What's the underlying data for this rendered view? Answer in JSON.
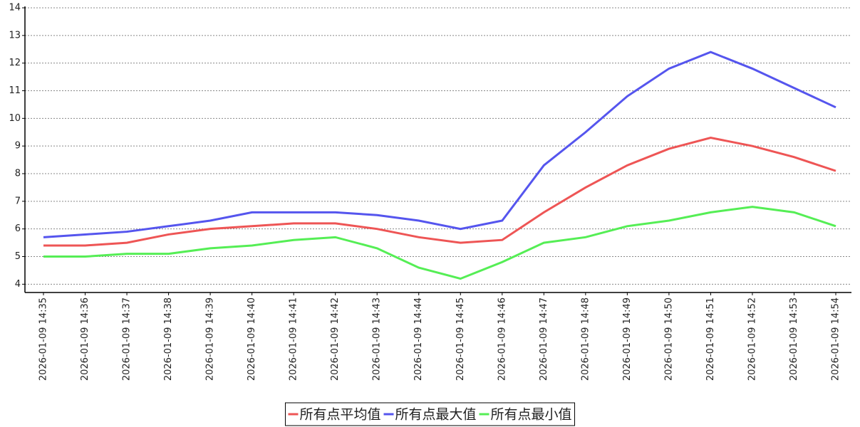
{
  "chart_data": {
    "type": "line",
    "categories": [
      "2026-01-09 14:35",
      "2026-01-09 14:36",
      "2026-01-09 14:37",
      "2026-01-09 14:38",
      "2026-01-09 14:39",
      "2026-01-09 14:40",
      "2026-01-09 14:41",
      "2026-01-09 14:42",
      "2026-01-09 14:43",
      "2026-01-09 14:44",
      "2026-01-09 14:45",
      "2026-01-09 14:46",
      "2026-01-09 14:47",
      "2026-01-09 14:48",
      "2026-01-09 14:49",
      "2026-01-09 14:50",
      "2026-01-09 14:51",
      "2026-01-09 14:52",
      "2026-01-09 14:53",
      "2026-01-09 14:54"
    ],
    "series": [
      {
        "name": "所有点平均值",
        "color": "#ee5555",
        "values": [
          5.4,
          5.4,
          5.5,
          5.8,
          6.0,
          6.1,
          6.2,
          6.2,
          6.0,
          5.7,
          5.5,
          5.6,
          6.6,
          7.5,
          8.3,
          8.9,
          9.3,
          9.0,
          8.6,
          8.1
        ]
      },
      {
        "name": "所有点最大值",
        "color": "#5555ee",
        "values": [
          5.7,
          5.8,
          5.9,
          6.1,
          6.3,
          6.6,
          6.6,
          6.6,
          6.5,
          6.3,
          6.0,
          6.3,
          8.3,
          9.5,
          10.8,
          11.8,
          12.4,
          11.8,
          11.1,
          10.4
        ]
      },
      {
        "name": "所有点最小值",
        "color": "#55ee55",
        "values": [
          5.0,
          5.0,
          5.1,
          5.1,
          5.3,
          5.4,
          5.6,
          5.7,
          5.3,
          4.6,
          4.2,
          4.8,
          5.5,
          5.7,
          6.1,
          6.3,
          6.6,
          6.8,
          6.6,
          6.1
        ]
      }
    ],
    "ylim": [
      3.7,
      14
    ],
    "yticks": [
      4,
      5,
      6,
      7,
      8,
      9,
      10,
      11,
      12,
      13,
      14
    ],
    "grid": true,
    "legend": "bottom"
  }
}
